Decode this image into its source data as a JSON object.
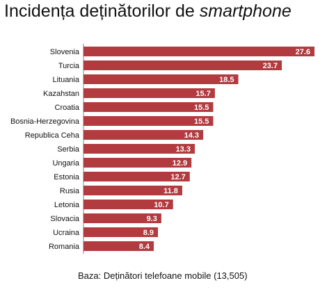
{
  "title": {
    "main": "Incidența deținătorilor de ",
    "italic": "smartphone"
  },
  "footnote": "Baza: Deținători telefoane mobile (13,505)",
  "colors": {
    "bar": "#b13b3f",
    "bar_label": "#ffffff",
    "axis": "#808080",
    "text": "#111111"
  },
  "chart_data": {
    "type": "bar",
    "orientation": "horizontal",
    "title": "Incidența deținătorilor de smartphone",
    "categories": [
      "Slovenia",
      "Turcia",
      "Lituania",
      "Kazahstan",
      "Croatia",
      "Bosnia-Herzegovina",
      "Republica Ceha",
      "Serbia",
      "Ungaria",
      "Estonia",
      "Rusia",
      "Letonia",
      "Slovacia",
      "Ucraina",
      "Romania"
    ],
    "values": [
      27.6,
      23.7,
      18.5,
      15.7,
      15.5,
      15.5,
      14.3,
      13.3,
      12.9,
      12.7,
      11.8,
      10.7,
      9.3,
      8.9,
      8.4
    ],
    "data_labels": [
      "27.6",
      "23.7",
      "18.5",
      "15.7",
      "15.5",
      "15.5",
      "14.3",
      "13.3",
      "12.9",
      "12.7",
      "11.8",
      "10.7",
      "9.3",
      "8.9",
      "8.4"
    ],
    "xlim": [
      0,
      27.6
    ],
    "grid": false,
    "legend": "none"
  }
}
